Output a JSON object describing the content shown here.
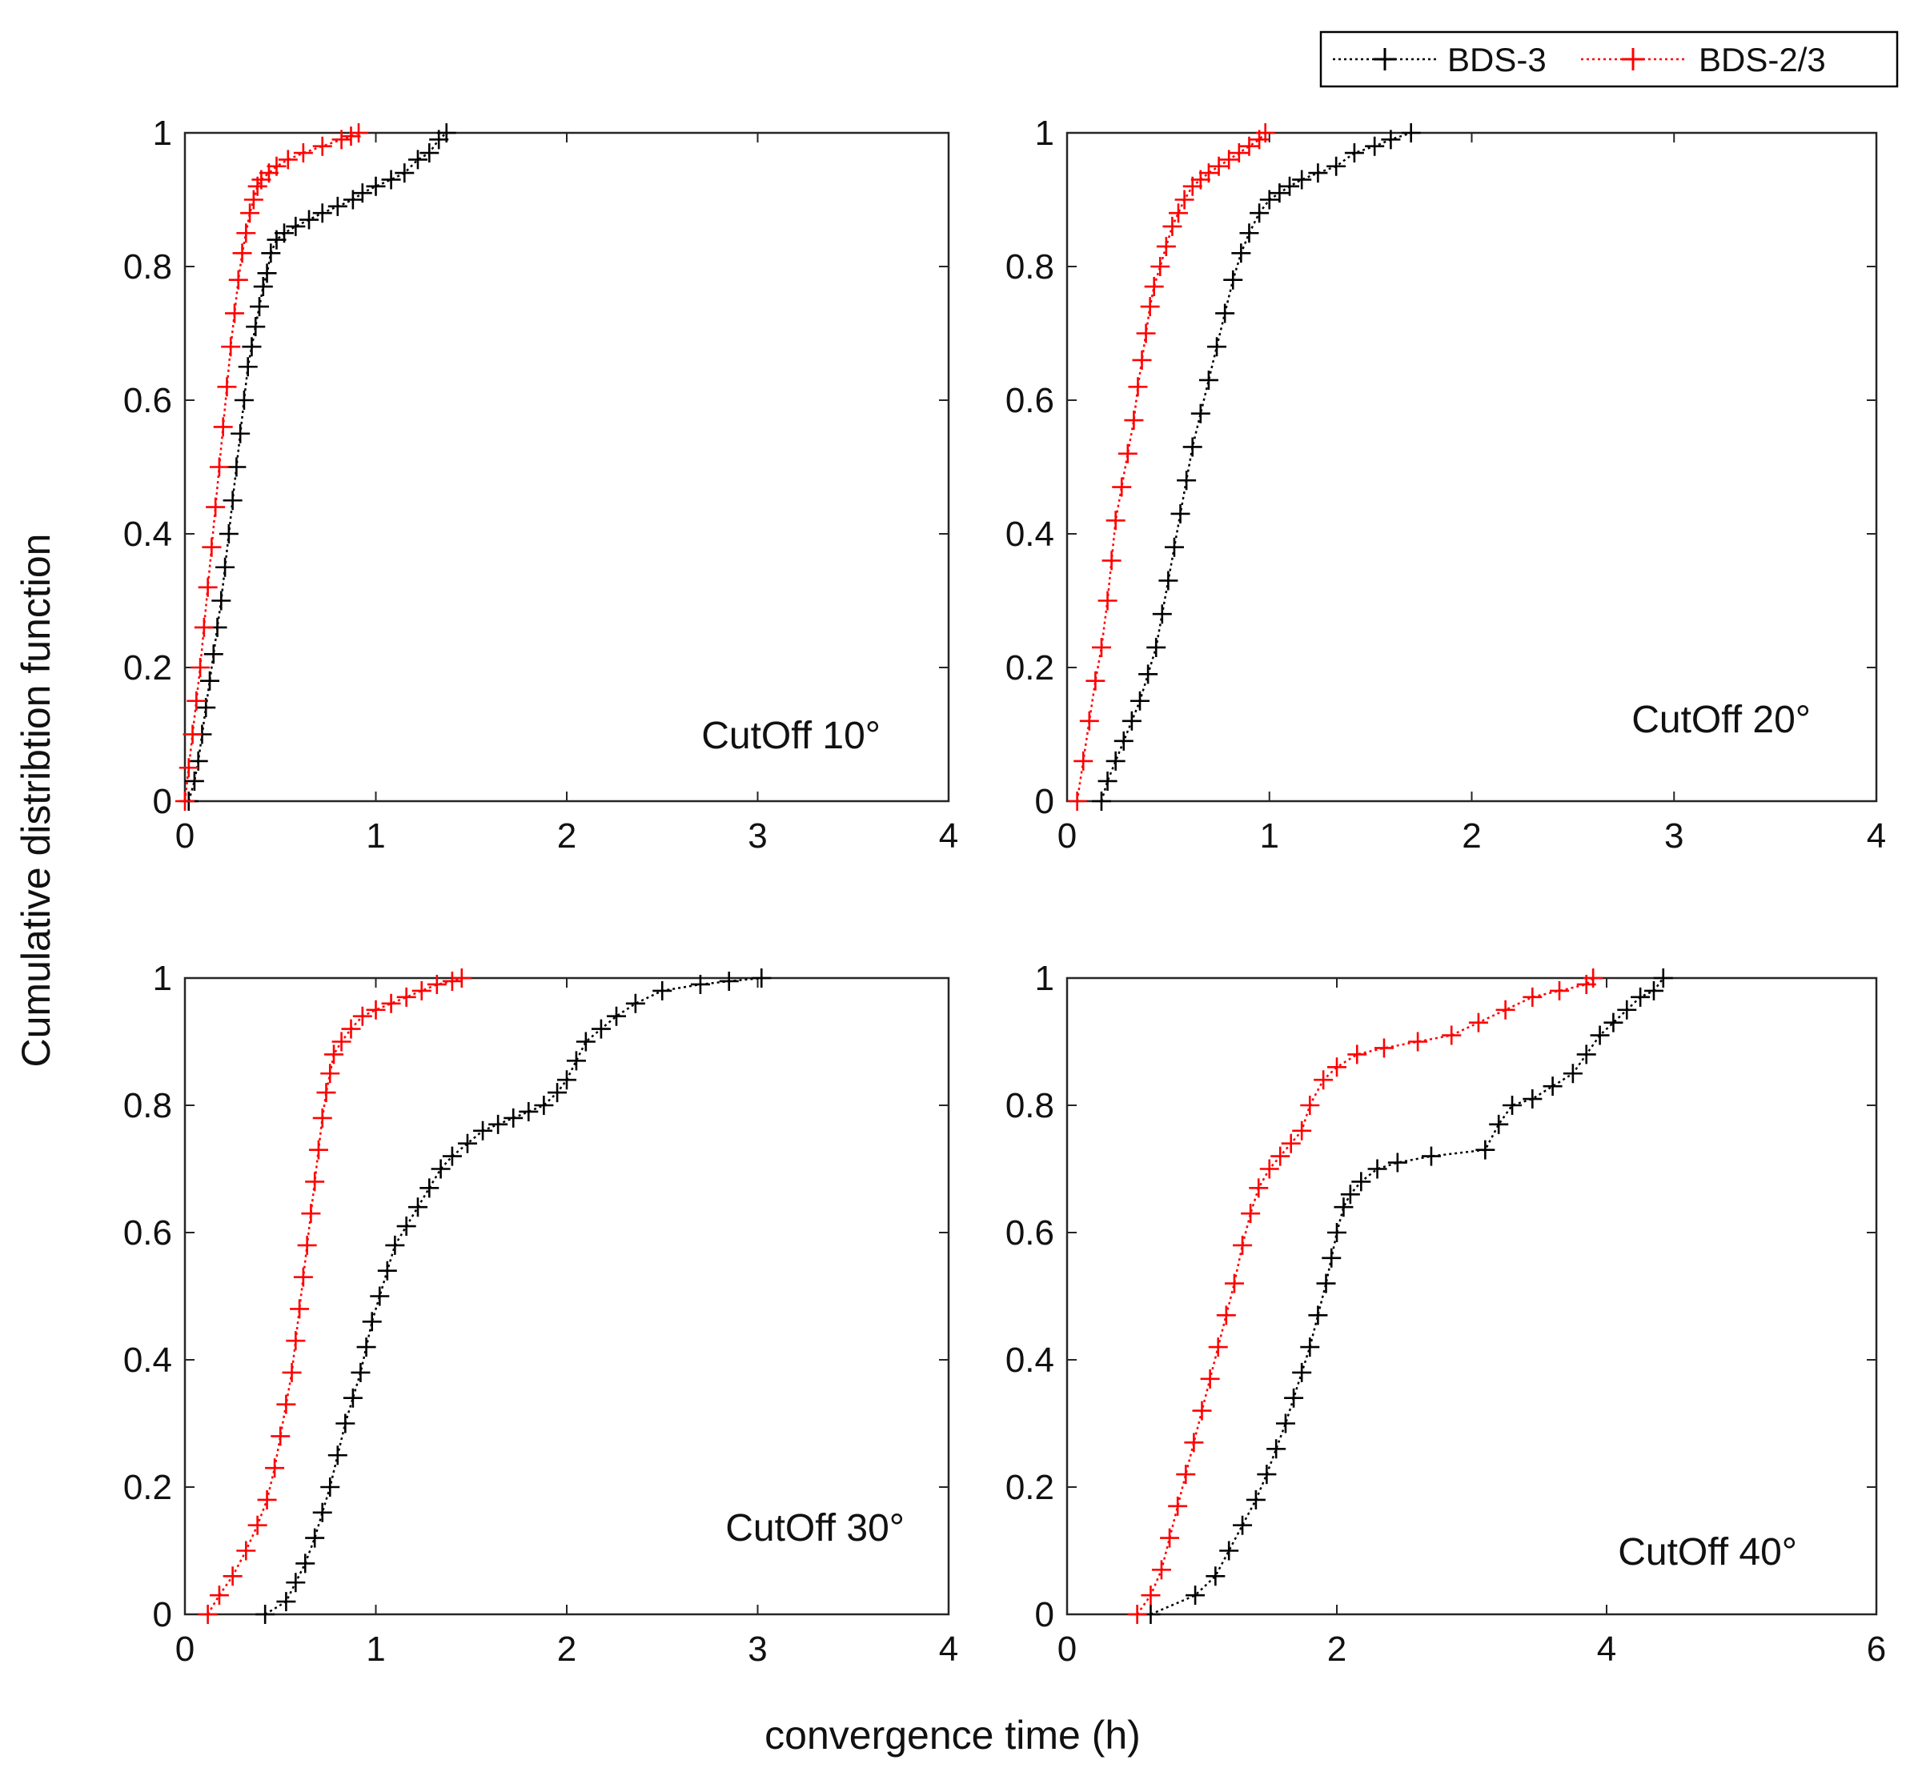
{
  "figure": {
    "xlabel": "convergence time (h)",
    "ylabel": "Cumulative distribtion function",
    "legend": {
      "placement": "top-right",
      "entries": [
        "BDS-3",
        "BDS-2/3"
      ]
    }
  },
  "chart_data": [
    {
      "type": "line",
      "annotation": "CutOff 10°",
      "xlim": [
        0,
        4
      ],
      "ylim": [
        0,
        1
      ],
      "xticks": [
        "0",
        "1",
        "2",
        "3",
        "4"
      ],
      "yticks": [
        "0",
        "0.2",
        "0.4",
        "0.6",
        "0.8",
        "1"
      ],
      "grid": false,
      "series": [
        {
          "name": "BDS-3",
          "color": "#000000",
          "x": [
            0.02,
            0.05,
            0.07,
            0.09,
            0.11,
            0.13,
            0.15,
            0.17,
            0.19,
            0.21,
            0.23,
            0.25,
            0.27,
            0.29,
            0.31,
            0.33,
            0.35,
            0.37,
            0.39,
            0.41,
            0.43,
            0.45,
            0.48,
            0.52,
            0.58,
            0.65,
            0.72,
            0.8,
            0.88,
            0.93,
            1.0,
            1.08,
            1.15,
            1.22,
            1.28,
            1.33,
            1.37
          ],
          "y": [
            0.0,
            0.03,
            0.06,
            0.1,
            0.14,
            0.18,
            0.22,
            0.26,
            0.3,
            0.35,
            0.4,
            0.45,
            0.5,
            0.55,
            0.6,
            0.65,
            0.68,
            0.71,
            0.74,
            0.77,
            0.79,
            0.82,
            0.84,
            0.85,
            0.86,
            0.87,
            0.88,
            0.89,
            0.9,
            0.91,
            0.92,
            0.93,
            0.94,
            0.96,
            0.97,
            0.99,
            1.0
          ]
        },
        {
          "name": "BDS-2/3",
          "color": "#ff0000",
          "x": [
            0.0,
            0.02,
            0.04,
            0.06,
            0.08,
            0.1,
            0.12,
            0.14,
            0.16,
            0.18,
            0.2,
            0.22,
            0.24,
            0.26,
            0.28,
            0.3,
            0.32,
            0.34,
            0.36,
            0.38,
            0.4,
            0.44,
            0.48,
            0.54,
            0.62,
            0.72,
            0.82,
            0.87,
            0.91
          ],
          "y": [
            0.0,
            0.05,
            0.1,
            0.15,
            0.2,
            0.26,
            0.32,
            0.38,
            0.44,
            0.5,
            0.56,
            0.62,
            0.68,
            0.73,
            0.78,
            0.82,
            0.85,
            0.88,
            0.9,
            0.92,
            0.93,
            0.94,
            0.95,
            0.96,
            0.97,
            0.98,
            0.99,
            0.995,
            1.0
          ]
        }
      ]
    },
    {
      "type": "line",
      "annotation": "CutOff 20°",
      "xlim": [
        0,
        4
      ],
      "ylim": [
        0,
        1
      ],
      "xticks": [
        "0",
        "1",
        "2",
        "3",
        "4"
      ],
      "yticks": [
        "0",
        "0.2",
        "0.4",
        "0.6",
        "0.8",
        "1"
      ],
      "grid": false,
      "series": [
        {
          "name": "BDS-3",
          "color": "#000000",
          "x": [
            0.17,
            0.2,
            0.24,
            0.28,
            0.32,
            0.36,
            0.4,
            0.44,
            0.47,
            0.5,
            0.53,
            0.56,
            0.59,
            0.62,
            0.66,
            0.7,
            0.74,
            0.78,
            0.82,
            0.86,
            0.9,
            0.95,
            1.0,
            1.05,
            1.1,
            1.16,
            1.24,
            1.33,
            1.42,
            1.52,
            1.6,
            1.7
          ],
          "y": [
            0.0,
            0.03,
            0.06,
            0.09,
            0.12,
            0.15,
            0.19,
            0.23,
            0.28,
            0.33,
            0.38,
            0.43,
            0.48,
            0.53,
            0.58,
            0.63,
            0.68,
            0.73,
            0.78,
            0.82,
            0.85,
            0.88,
            0.9,
            0.91,
            0.92,
            0.93,
            0.94,
            0.95,
            0.97,
            0.98,
            0.99,
            1.0
          ]
        },
        {
          "name": "BDS-2/3",
          "color": "#ff0000",
          "x": [
            0.05,
            0.08,
            0.11,
            0.14,
            0.17,
            0.2,
            0.22,
            0.24,
            0.27,
            0.3,
            0.33,
            0.35,
            0.37,
            0.39,
            0.41,
            0.43,
            0.46,
            0.49,
            0.52,
            0.55,
            0.58,
            0.62,
            0.66,
            0.7,
            0.75,
            0.8,
            0.85,
            0.9,
            0.95,
            0.98
          ],
          "y": [
            0.0,
            0.06,
            0.12,
            0.18,
            0.23,
            0.3,
            0.36,
            0.42,
            0.47,
            0.52,
            0.57,
            0.62,
            0.66,
            0.7,
            0.74,
            0.77,
            0.8,
            0.83,
            0.86,
            0.88,
            0.9,
            0.92,
            0.93,
            0.94,
            0.95,
            0.96,
            0.97,
            0.98,
            0.99,
            1.0
          ]
        }
      ]
    },
    {
      "type": "line",
      "annotation": "CutOff 30°",
      "xlim": [
        0,
        4
      ],
      "ylim": [
        0,
        1
      ],
      "xticks": [
        "0",
        "1",
        "2",
        "3",
        "4"
      ],
      "yticks": [
        "0",
        "0.2",
        "0.4",
        "0.6",
        "0.8",
        "1"
      ],
      "grid": false,
      "series": [
        {
          "name": "BDS-3",
          "color": "#000000",
          "x": [
            0.42,
            0.53,
            0.58,
            0.63,
            0.68,
            0.72,
            0.76,
            0.8,
            0.84,
            0.88,
            0.92,
            0.95,
            0.98,
            1.02,
            1.06,
            1.1,
            1.16,
            1.22,
            1.28,
            1.34,
            1.4,
            1.48,
            1.56,
            1.64,
            1.72,
            1.8,
            1.88,
            1.95,
            2.0,
            2.05,
            2.1,
            2.18,
            2.26,
            2.36,
            2.5,
            2.7,
            2.85,
            3.02
          ],
          "y": [
            0.0,
            0.02,
            0.05,
            0.08,
            0.12,
            0.16,
            0.2,
            0.25,
            0.3,
            0.34,
            0.38,
            0.42,
            0.46,
            0.5,
            0.54,
            0.58,
            0.61,
            0.64,
            0.67,
            0.7,
            0.72,
            0.74,
            0.76,
            0.77,
            0.78,
            0.79,
            0.8,
            0.82,
            0.84,
            0.87,
            0.9,
            0.92,
            0.94,
            0.96,
            0.98,
            0.99,
            0.995,
            1.0
          ]
        },
        {
          "name": "BDS-2/3",
          "color": "#ff0000",
          "x": [
            0.12,
            0.18,
            0.25,
            0.32,
            0.38,
            0.43,
            0.47,
            0.5,
            0.53,
            0.56,
            0.58,
            0.6,
            0.62,
            0.64,
            0.66,
            0.68,
            0.7,
            0.72,
            0.74,
            0.76,
            0.78,
            0.82,
            0.87,
            0.93,
            1.0,
            1.08,
            1.16,
            1.24,
            1.32,
            1.4,
            1.45
          ],
          "y": [
            0.0,
            0.03,
            0.06,
            0.1,
            0.14,
            0.18,
            0.23,
            0.28,
            0.33,
            0.38,
            0.43,
            0.48,
            0.53,
            0.58,
            0.63,
            0.68,
            0.73,
            0.78,
            0.82,
            0.85,
            0.88,
            0.9,
            0.92,
            0.94,
            0.95,
            0.96,
            0.97,
            0.98,
            0.99,
            0.995,
            1.0
          ]
        }
      ]
    },
    {
      "type": "line",
      "annotation": "CutOff 40°",
      "xlim": [
        0,
        6
      ],
      "ylim": [
        0,
        1
      ],
      "xticks": [
        "0",
        "2",
        "4",
        "6"
      ],
      "yticks": [
        "0",
        "0.2",
        "0.4",
        "0.6",
        "0.8",
        "1"
      ],
      "grid": false,
      "series": [
        {
          "name": "BDS-3",
          "color": "#000000",
          "x": [
            0.62,
            0.95,
            1.1,
            1.2,
            1.3,
            1.4,
            1.48,
            1.55,
            1.62,
            1.68,
            1.74,
            1.8,
            1.86,
            1.92,
            1.96,
            2.0,
            2.05,
            2.1,
            2.18,
            2.3,
            2.45,
            2.7,
            3.1,
            3.2,
            3.3,
            3.45,
            3.6,
            3.75,
            3.85,
            3.95,
            4.05,
            4.15,
            4.25,
            4.35,
            4.42
          ],
          "y": [
            0.0,
            0.03,
            0.06,
            0.1,
            0.14,
            0.18,
            0.22,
            0.26,
            0.3,
            0.34,
            0.38,
            0.42,
            0.47,
            0.52,
            0.56,
            0.6,
            0.64,
            0.66,
            0.68,
            0.7,
            0.71,
            0.72,
            0.73,
            0.77,
            0.8,
            0.81,
            0.83,
            0.85,
            0.88,
            0.91,
            0.93,
            0.95,
            0.97,
            0.98,
            1.0
          ]
        },
        {
          "name": "BDS-2/3",
          "color": "#ff0000",
          "x": [
            0.52,
            0.62,
            0.7,
            0.76,
            0.82,
            0.88,
            0.94,
            1.0,
            1.06,
            1.12,
            1.18,
            1.24,
            1.3,
            1.36,
            1.42,
            1.5,
            1.58,
            1.66,
            1.74,
            1.8,
            1.9,
            2.0,
            2.15,
            2.35,
            2.6,
            2.85,
            3.05,
            3.25,
            3.45,
            3.65,
            3.85,
            3.9
          ],
          "y": [
            0.0,
            0.03,
            0.07,
            0.12,
            0.17,
            0.22,
            0.27,
            0.32,
            0.37,
            0.42,
            0.47,
            0.52,
            0.58,
            0.63,
            0.67,
            0.7,
            0.72,
            0.74,
            0.76,
            0.8,
            0.84,
            0.86,
            0.88,
            0.89,
            0.9,
            0.91,
            0.93,
            0.95,
            0.97,
            0.98,
            0.99,
            1.0
          ]
        }
      ]
    }
  ]
}
